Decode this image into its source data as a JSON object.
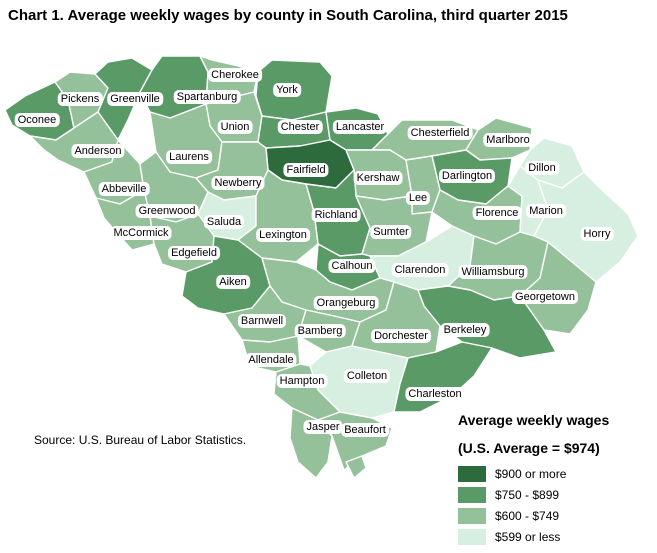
{
  "title": "Chart 1. Average weekly wages by county in South Carolina, third quarter 2015",
  "source": "Source: U.S. Bureau of Labor Statistics.",
  "legend": {
    "title": "Average weekly wages",
    "subtitle": "(U.S. Average = $974)",
    "items": [
      {
        "label": "$900 or more",
        "color": "#2e6b3c"
      },
      {
        "label": "$750 - $899",
        "color": "#5a9a67"
      },
      {
        "label": "$600 - $749",
        "color": "#94c19a"
      },
      {
        "label": "$599 or less",
        "color": "#d7efe0"
      }
    ]
  },
  "colors": {
    "background": "#ffffff",
    "border": "#ffffff"
  },
  "counties": [
    {
      "name": "Oconee",
      "tier": 1
    },
    {
      "name": "Pickens",
      "tier": 2
    },
    {
      "name": "Greenville",
      "tier": 1
    },
    {
      "name": "Spartanburg",
      "tier": 1
    },
    {
      "name": "Cherokee",
      "tier": 2
    },
    {
      "name": "York",
      "tier": 1
    },
    {
      "name": "Anderson",
      "tier": 2
    },
    {
      "name": "Union",
      "tier": 2
    },
    {
      "name": "Chester",
      "tier": 1
    },
    {
      "name": "Lancaster",
      "tier": 1
    },
    {
      "name": "Chesterfield",
      "tier": 2
    },
    {
      "name": "Marlboro",
      "tier": 2
    },
    {
      "name": "Laurens",
      "tier": 2
    },
    {
      "name": "Fairfield",
      "tier": 0
    },
    {
      "name": "Dillon",
      "tier": 3
    },
    {
      "name": "Abbeville",
      "tier": 2
    },
    {
      "name": "Newberry",
      "tier": 2
    },
    {
      "name": "Kershaw",
      "tier": 2
    },
    {
      "name": "Darlington",
      "tier": 1
    },
    {
      "name": "Greenwood",
      "tier": 2
    },
    {
      "name": "Lee",
      "tier": 2
    },
    {
      "name": "Saluda",
      "tier": 3
    },
    {
      "name": "Richland",
      "tier": 1
    },
    {
      "name": "Florence",
      "tier": 2
    },
    {
      "name": "Marion",
      "tier": 3
    },
    {
      "name": "McCormick",
      "tier": 2
    },
    {
      "name": "Lexington",
      "tier": 2
    },
    {
      "name": "Sumter",
      "tier": 2
    },
    {
      "name": "Horry",
      "tier": 3
    },
    {
      "name": "Edgefield",
      "tier": 2
    },
    {
      "name": "Calhoun",
      "tier": 1
    },
    {
      "name": "Clarendon",
      "tier": 3
    },
    {
      "name": "Williamsburg",
      "tier": 2
    },
    {
      "name": "Aiken",
      "tier": 1
    },
    {
      "name": "Georgetown",
      "tier": 2
    },
    {
      "name": "Orangeburg",
      "tier": 2
    },
    {
      "name": "Barnwell",
      "tier": 2
    },
    {
      "name": "Bamberg",
      "tier": 2
    },
    {
      "name": "Berkeley",
      "tier": 1
    },
    {
      "name": "Dorchester",
      "tier": 2
    },
    {
      "name": "Allendale",
      "tier": 2
    },
    {
      "name": "Colleton",
      "tier": 3
    },
    {
      "name": "Hampton",
      "tier": 2
    },
    {
      "name": "Charleston",
      "tier": 1
    },
    {
      "name": "Jasper",
      "tier": 2
    },
    {
      "name": "Beaufort",
      "tier": 2
    }
  ]
}
